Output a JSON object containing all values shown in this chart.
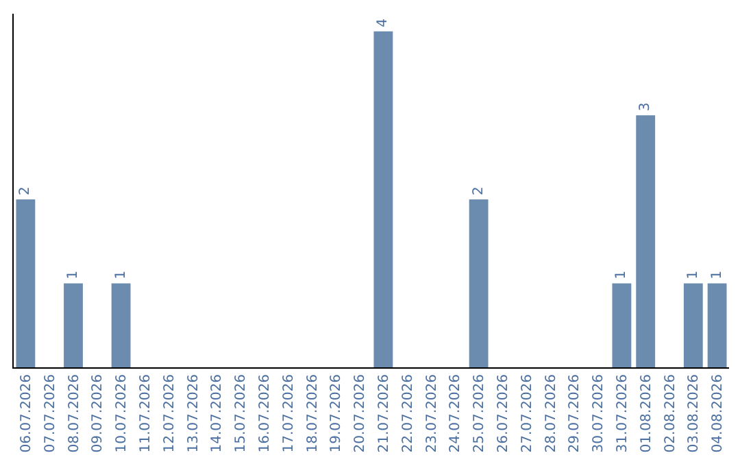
{
  "chart_data": {
    "type": "bar",
    "categories": [
      "06.07.2026",
      "07.07.2026",
      "08.07.2026",
      "09.07.2026",
      "10.07.2026",
      "11.07.2026",
      "12.07.2026",
      "13.07.2026",
      "14.07.2026",
      "15.07.2026",
      "16.07.2026",
      "17.07.2026",
      "18.07.2026",
      "19.07.2026",
      "20.07.2026",
      "21.07.2026",
      "22.07.2026",
      "23.07.2026",
      "24.07.2026",
      "25.07.2026",
      "26.07.2026",
      "27.07.2026",
      "28.07.2026",
      "29.07.2026",
      "30.07.2026",
      "31.07.2026",
      "01.08.2026",
      "02.08.2026",
      "03.08.2026",
      "04.08.2026"
    ],
    "values": [
      2,
      0,
      1,
      0,
      1,
      0,
      0,
      0,
      0,
      0,
      0,
      0,
      0,
      0,
      0,
      4,
      0,
      0,
      0,
      2,
      0,
      0,
      0,
      0,
      0,
      1,
      3,
      0,
      1,
      1
    ],
    "value_labels": [
      "2",
      null,
      "1",
      null,
      "1",
      null,
      null,
      null,
      null,
      null,
      null,
      null,
      null,
      null,
      null,
      "4",
      null,
      null,
      null,
      "2",
      null,
      null,
      null,
      null,
      null,
      "1",
      "3",
      null,
      "1",
      "1"
    ],
    "color": "#6b8cae",
    "grid": false,
    "legend": false
  }
}
